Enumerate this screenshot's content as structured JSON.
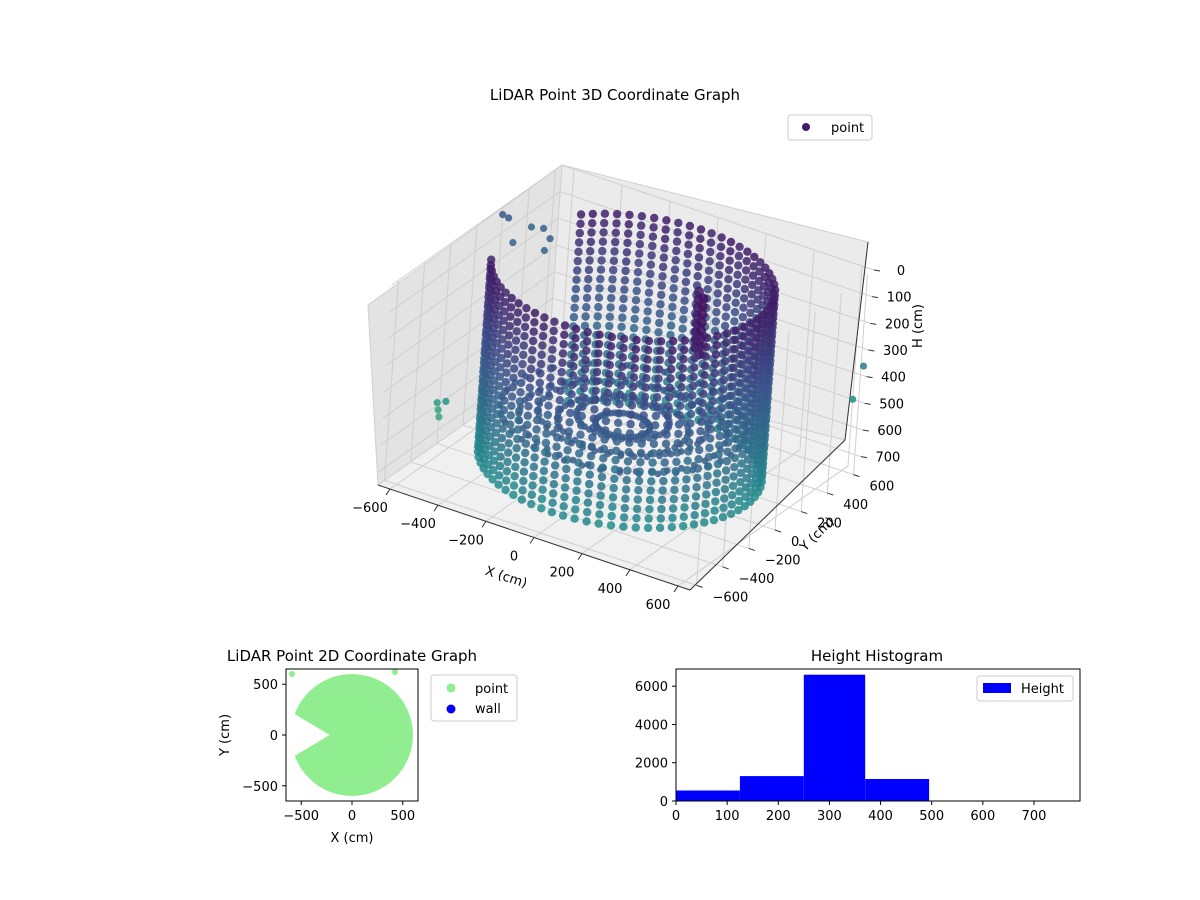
{
  "chart_data": [
    {
      "type": "scatter",
      "projection": "3d",
      "title": "LiDAR Point 3D Coordinate Graph",
      "xlabel": "X (cm)",
      "ylabel": "Y (cm)",
      "zlabel": "H (cm)",
      "x_ticks": [
        "−600",
        "−400",
        "−200",
        "0",
        "200",
        "400",
        "600"
      ],
      "y_ticks": [
        "−600",
        "−400",
        "−200",
        "0",
        "200",
        "400",
        "600"
      ],
      "z_ticks": [
        "0",
        "100",
        "200",
        "300",
        "400",
        "500",
        "600",
        "700"
      ],
      "xlim": [
        -650,
        650
      ],
      "ylim": [
        -650,
        650
      ],
      "zlim": [
        0,
        750
      ],
      "z_inverted": true,
      "grid": true,
      "colormap": "viridis",
      "legend": {
        "placement": "top-right",
        "entries": [
          {
            "label": "point",
            "color": "#46176e"
          }
        ]
      },
      "series": [
        {
          "name": "point",
          "shape": "cylindrical wall of points",
          "radius": 520,
          "height_range": [
            0,
            700
          ],
          "opening_angle_range_deg": [
            140,
            205
          ],
          "outliers": [
            {
              "x": -700,
              "y": 300,
              "z": 80
            },
            {
              "x": -650,
              "y": 250,
              "z": 60
            },
            {
              "x": -600,
              "y": 200,
              "z": 120
            },
            {
              "x": -640,
              "y": 420,
              "z": 150
            },
            {
              "x": -560,
              "y": 360,
              "z": 110
            },
            {
              "x": -520,
              "y": 300,
              "z": 160
            },
            {
              "x": -480,
              "y": 260,
              "z": 90
            },
            {
              "x": -700,
              "y": -100,
              "z": 700
            },
            {
              "x": -680,
              "y": -150,
              "z": 650
            },
            {
              "x": -660,
              "y": -200,
              "z": 600
            },
            {
              "x": -600,
              "y": -250,
              "z": 560
            },
            {
              "x": 650,
              "y": 620,
              "z": 350
            },
            {
              "x": 600,
              "y": 650,
              "z": 500
            }
          ]
        }
      ]
    },
    {
      "type": "scatter",
      "title": "LiDAR Point 2D Coordinate Graph",
      "xlabel": "X (cm)",
      "ylabel": "Y (cm)",
      "x_ticks": [
        "−500",
        "0",
        "500"
      ],
      "y_ticks": [
        "−500",
        "0",
        "500"
      ],
      "xlim": [
        -650,
        650
      ],
      "ylim": [
        -650,
        650
      ],
      "legend": {
        "placement": "right-outside",
        "entries": [
          {
            "label": "point",
            "color": "#90ee90"
          },
          {
            "label": "wall",
            "color": "#0000ff"
          }
        ]
      },
      "series": [
        {
          "name": "point",
          "color": "#90ee90",
          "region": "filled disc",
          "radius": 600,
          "wedge_opening_deg": [
            160,
            200
          ]
        },
        {
          "name": "wall",
          "color": "#0000ff"
        }
      ]
    },
    {
      "type": "bar",
      "title": "Height Histogram",
      "xlabel": "",
      "ylabel": "",
      "x_ticks": [
        "0",
        "100",
        "200",
        "300",
        "400",
        "500",
        "600",
        "700"
      ],
      "y_ticks": [
        "0",
        "2000",
        "4000",
        "6000"
      ],
      "xlim": [
        0,
        790
      ],
      "ylim": [
        0,
        6900
      ],
      "legend": {
        "placement": "top-right",
        "entries": [
          {
            "label": "Height",
            "color": "#0000ff"
          }
        ]
      },
      "series": [
        {
          "name": "Height",
          "color": "#0000ff",
          "bins": [
            {
              "x0": 0,
              "x1": 125,
              "value": 550
            },
            {
              "x0": 125,
              "x1": 250,
              "value": 1300
            },
            {
              "x0": 250,
              "x1": 370,
              "value": 6600
            },
            {
              "x0": 370,
              "x1": 495,
              "value": 1150
            },
            {
              "x0": 495,
              "x1": 620,
              "value": 0
            },
            {
              "x0": 620,
              "x1": 745,
              "value": 0
            }
          ]
        }
      ]
    }
  ]
}
